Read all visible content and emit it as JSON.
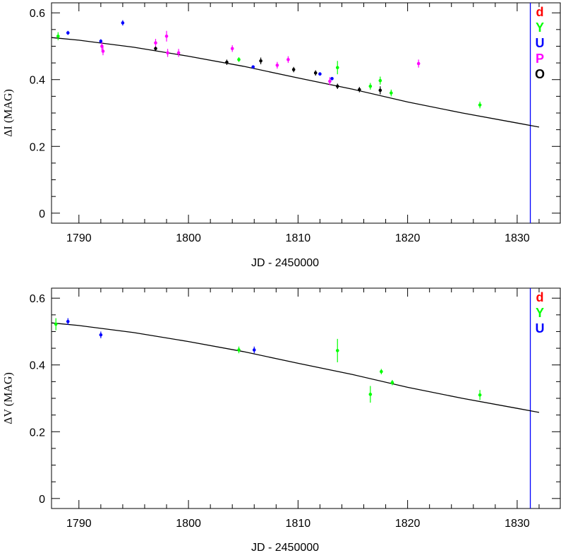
{
  "chart_data": [
    {
      "type": "scatter",
      "panel": "top",
      "title": "",
      "xlabel": "JD - 2450000",
      "ylabel": "ΔI (MAG)",
      "xlim": [
        1787.5,
        1834
      ],
      "ylim": [
        -0.03,
        0.63
      ],
      "xticks": [
        1790,
        1800,
        1810,
        1820,
        1830
      ],
      "xtick_labels": [
        "1790",
        "1800",
        "1810",
        "1820",
        "1830"
      ],
      "yticks": [
        0,
        0.2,
        0.4,
        0.6
      ],
      "ytick_labels": [
        "0",
        "0.2",
        "0.4",
        "0.6"
      ],
      "grid": false,
      "legend_position": "top-right",
      "vline": {
        "x": 1831.2,
        "color": "#0000ff"
      },
      "model_curve": [
        [
          1787.5,
          0.526
        ],
        [
          1790,
          0.518
        ],
        [
          1795,
          0.497
        ],
        [
          1800,
          0.47
        ],
        [
          1805,
          0.44
        ],
        [
          1810,
          0.405
        ],
        [
          1815,
          0.371
        ],
        [
          1820,
          0.333
        ],
        [
          1825,
          0.3
        ],
        [
          1830,
          0.27
        ],
        [
          1832,
          0.258
        ]
      ],
      "series": [
        {
          "name": "d",
          "color": "#ff0000",
          "points": []
        },
        {
          "name": "Y",
          "color": "#00ff00",
          "points": [
            {
              "x": 1788.1,
              "y": 0.53,
              "err": 0.012
            },
            {
              "x": 1804.6,
              "y": 0.46,
              "err": 0.007
            },
            {
              "x": 1813.6,
              "y": 0.436,
              "err": 0.02
            },
            {
              "x": 1816.6,
              "y": 0.38,
              "err": 0.01
            },
            {
              "x": 1817.5,
              "y": 0.397,
              "err": 0.012
            },
            {
              "x": 1818.5,
              "y": 0.36,
              "err": 0.01
            },
            {
              "x": 1826.6,
              "y": 0.324,
              "err": 0.01
            }
          ]
        },
        {
          "name": "U",
          "color": "#0000ff",
          "points": [
            {
              "x": 1789.0,
              "y": 0.54,
              "err": 0.006
            },
            {
              "x": 1792.0,
              "y": 0.515,
              "err": 0.006
            },
            {
              "x": 1794.0,
              "y": 0.57,
              "err": 0.008
            },
            {
              "x": 1805.9,
              "y": 0.438,
              "err": 0.005
            },
            {
              "x": 1812.0,
              "y": 0.417,
              "err": 0.005
            },
            {
              "x": 1813.1,
              "y": 0.403,
              "err": 0.005
            }
          ]
        },
        {
          "name": "P",
          "color": "#ff00ff",
          "points": [
            {
              "x": 1792.1,
              "y": 0.5,
              "err": 0.012
            },
            {
              "x": 1792.2,
              "y": 0.485,
              "err": 0.012
            },
            {
              "x": 1797.0,
              "y": 0.51,
              "err": 0.012
            },
            {
              "x": 1798.0,
              "y": 0.53,
              "err": 0.016
            },
            {
              "x": 1798.1,
              "y": 0.48,
              "err": 0.012
            },
            {
              "x": 1799.1,
              "y": 0.48,
              "err": 0.012
            },
            {
              "x": 1804.0,
              "y": 0.493,
              "err": 0.01
            },
            {
              "x": 1808.1,
              "y": 0.443,
              "err": 0.01
            },
            {
              "x": 1809.1,
              "y": 0.46,
              "err": 0.01
            },
            {
              "x": 1812.9,
              "y": 0.395,
              "err": 0.012
            },
            {
              "x": 1821.0,
              "y": 0.448,
              "err": 0.012
            }
          ]
        },
        {
          "name": "O",
          "color": "#000000",
          "points": [
            {
              "x": 1797.0,
              "y": 0.493,
              "err": 0.006
            },
            {
              "x": 1803.5,
              "y": 0.452,
              "err": 0.008
            },
            {
              "x": 1806.6,
              "y": 0.456,
              "err": 0.01
            },
            {
              "x": 1809.6,
              "y": 0.43,
              "err": 0.008
            },
            {
              "x": 1811.6,
              "y": 0.42,
              "err": 0.008
            },
            {
              "x": 1813.6,
              "y": 0.38,
              "err": 0.008
            },
            {
              "x": 1815.6,
              "y": 0.37,
              "err": 0.008
            },
            {
              "x": 1817.5,
              "y": 0.368,
              "err": 0.012
            }
          ]
        }
      ]
    },
    {
      "type": "scatter",
      "panel": "bottom",
      "title": "",
      "xlabel": "JD - 2450000",
      "ylabel": "ΔV (MAG)",
      "xlim": [
        1787.5,
        1834
      ],
      "ylim": [
        -0.03,
        0.63
      ],
      "xticks": [
        1790,
        1800,
        1810,
        1820,
        1830
      ],
      "xtick_labels": [
        "1790",
        "1800",
        "1810",
        "1820",
        "1830"
      ],
      "yticks": [
        0,
        0.2,
        0.4,
        0.6
      ],
      "ytick_labels": [
        "0",
        "0.2",
        "0.4",
        "0.6"
      ],
      "grid": false,
      "legend_position": "top-right",
      "vline": {
        "x": 1831.2,
        "color": "#0000ff"
      },
      "model_curve": [
        [
          1787.5,
          0.526
        ],
        [
          1790,
          0.518
        ],
        [
          1795,
          0.497
        ],
        [
          1800,
          0.47
        ],
        [
          1805,
          0.44
        ],
        [
          1810,
          0.405
        ],
        [
          1815,
          0.371
        ],
        [
          1820,
          0.333
        ],
        [
          1825,
          0.3
        ],
        [
          1830,
          0.27
        ],
        [
          1832,
          0.258
        ]
      ],
      "series": [
        {
          "name": "d",
          "color": "#ff0000",
          "points": []
        },
        {
          "name": "Y",
          "color": "#00ff00",
          "points": [
            {
              "x": 1787.9,
              "y": 0.522,
              "err": 0.018
            },
            {
              "x": 1804.6,
              "y": 0.445,
              "err": 0.01
            },
            {
              "x": 1813.6,
              "y": 0.443,
              "err": 0.035
            },
            {
              "x": 1816.6,
              "y": 0.312,
              "err": 0.025
            },
            {
              "x": 1817.6,
              "y": 0.38,
              "err": 0.008
            },
            {
              "x": 1818.6,
              "y": 0.347,
              "err": 0.008
            },
            {
              "x": 1826.6,
              "y": 0.31,
              "err": 0.015
            }
          ]
        },
        {
          "name": "U",
          "color": "#0000ff",
          "points": [
            {
              "x": 1789.0,
              "y": 0.53,
              "err": 0.01
            },
            {
              "x": 1792.0,
              "y": 0.49,
              "err": 0.01
            },
            {
              "x": 1806.0,
              "y": 0.445,
              "err": 0.01
            }
          ]
        }
      ]
    }
  ]
}
